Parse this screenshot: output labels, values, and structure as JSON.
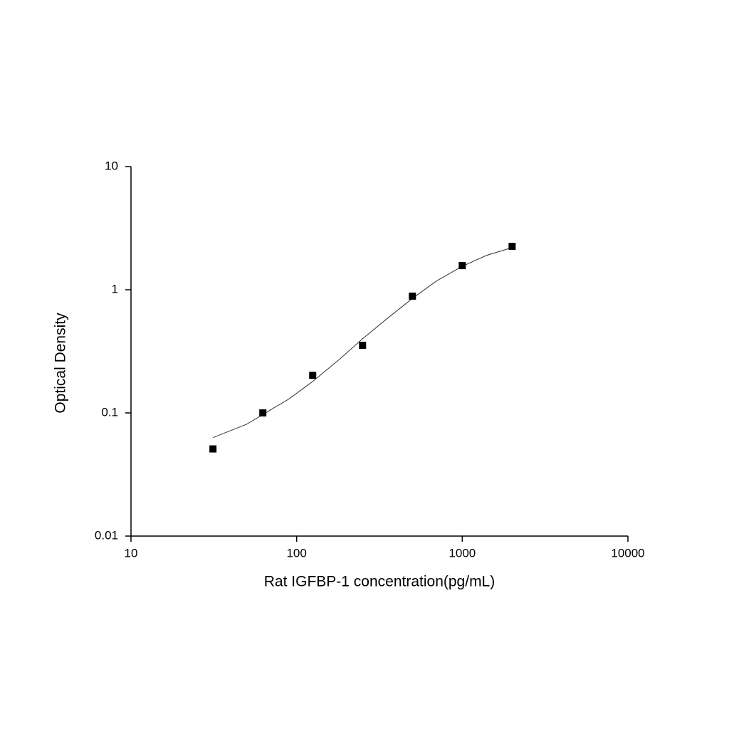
{
  "chart_data": {
    "type": "scatter",
    "x_label": "Rat IGFBP-1 concentration(pg/mL)",
    "y_label": "Optical Density",
    "x": [
      31.25,
      62.5,
      125,
      250,
      500,
      1000,
      2000
    ],
    "values": [
      0.051,
      0.1,
      0.202,
      0.354,
      0.887,
      1.57,
      2.25
    ],
    "color": "#000000",
    "marker": "square",
    "fit": {
      "x": [
        31.25,
        50,
        62.5,
        90,
        125,
        180,
        250,
        350,
        500,
        700,
        1000,
        1400,
        2000
      ],
      "values": [
        0.063,
        0.081,
        0.097,
        0.13,
        0.18,
        0.27,
        0.4,
        0.58,
        0.85,
        1.18,
        1.55,
        1.9,
        2.2
      ],
      "color": "#333333"
    },
    "xscale": "log",
    "yscale": "log",
    "xlim": [
      10,
      10000
    ],
    "ylim": [
      0.01,
      10
    ],
    "xticks": [
      10,
      100,
      1000,
      10000
    ],
    "yticks": [
      0.01,
      0.1,
      1,
      10
    ]
  }
}
